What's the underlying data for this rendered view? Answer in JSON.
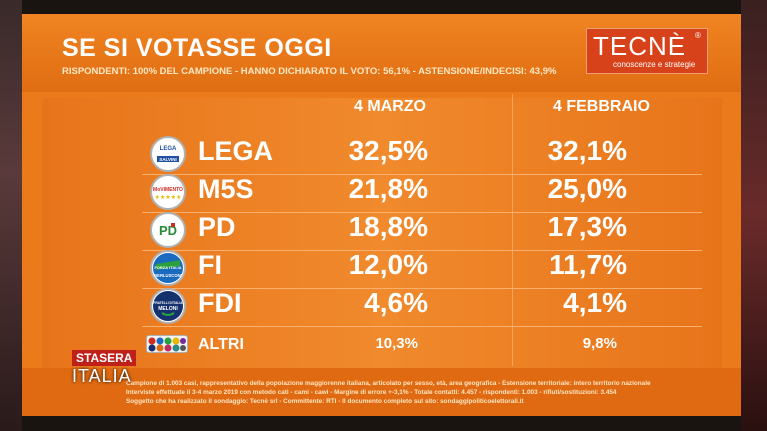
{
  "header": {
    "title": "SE SI VOTASSE OGGI",
    "subtitle": "RISPONDENTI: 100% DEL CAMPIONE - HANNO DICHIARATO IL VOTO: 56,1% - ASTENSIONE/INDECISI: 43,9%"
  },
  "logo": {
    "main": "TECNÈ",
    "reg": "®",
    "tagline": "conoscenze e strategie"
  },
  "logo_texts": {
    "lega": [
      "LEGA",
      "SALVINI"
    ],
    "m5s": [
      "MoVIMENTO"
    ],
    "pd": [
      "PD"
    ],
    "fi": [
      "FORZA ITALIA",
      "BERLUSCONI"
    ],
    "fdi": [
      "FRATELLI D'ITALIA",
      "MELONI"
    ]
  },
  "tv_badge": {
    "top": "STASERA",
    "bottom": "ITALIA"
  },
  "footnotes": [
    "Campione di 1.003 casi, rappresentativo della popolazione maggiorenne italiana, articolato per sesso, età, area geografica - Estensione territoriale: intero territorio nazionale",
    "Interviste effettuate il 3-4 marzo 2019 con metodo cati - cami - cawi - Margine di errore +-3,1% - Totale contatti: 4.457 - rispondenti: 1.003 - rifiuti/sostituzioni: 3.454",
    "Soggetto che ha realizzato il sondaggio: Tecnè srl - Committente: RTI - Il documento completo sul sito: sondaggipoliticoelettorali.it"
  ],
  "colors": {
    "board": "#ea7a1a",
    "text": "#ffffff",
    "lega_blue": "#1e4fa0",
    "m5s_red": "#d42a20",
    "pd_green": "#2a8a3a",
    "fi_blue": "#1a6ac0",
    "fdi_blue": "#16326e"
  },
  "chart_data": {
    "type": "table",
    "title": "SE SI VOTASSE OGGI",
    "columns": [
      "4 MARZO",
      "4 FEBBRAIO"
    ],
    "rows": [
      {
        "party": "LEGA",
        "values": [
          "32,5%",
          "32,1%"
        ]
      },
      {
        "party": "M5S",
        "values": [
          "21,8%",
          "25,0%"
        ]
      },
      {
        "party": "PD",
        "values": [
          "18,8%",
          "17,3%"
        ]
      },
      {
        "party": "FI",
        "values": [
          "12,0%",
          "11,7%"
        ]
      },
      {
        "party": "FDI",
        "values": [
          "4,6%",
          "4,1%"
        ]
      },
      {
        "party": "ALTRI",
        "values": [
          "10,3%",
          "9,8%"
        ]
      }
    ]
  }
}
